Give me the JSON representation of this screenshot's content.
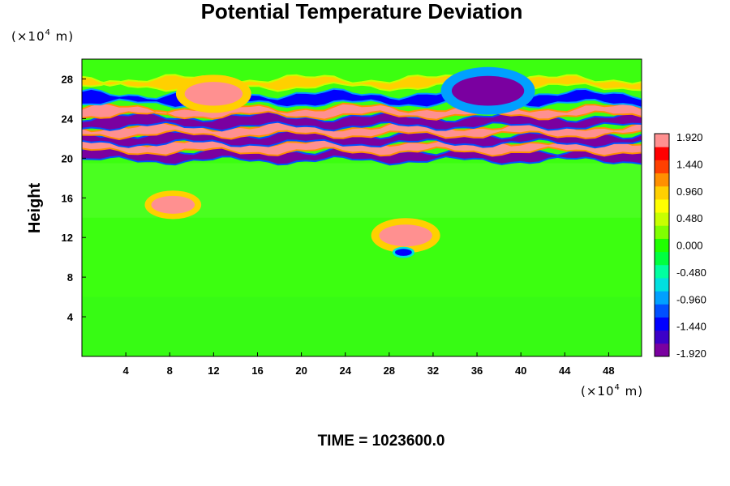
{
  "chart_data": {
    "type": "heatmap",
    "title": "Potential Temperature Deviation",
    "ylabel": "Height",
    "xlabel": "",
    "x_unit": "(×10",
    "x_unit_exp": "4",
    "x_unit_tail": " m)",
    "y_unit": "(×10",
    "y_unit_exp": "4",
    "y_unit_tail": " m)",
    "xlim": [
      0,
      51
    ],
    "ylim": [
      0,
      30
    ],
    "x_ticks": [
      "4",
      "8",
      "12",
      "16",
      "20",
      "24",
      "28",
      "32",
      "36",
      "40",
      "44",
      "48"
    ],
    "x_tick_values": [
      4,
      8,
      12,
      16,
      20,
      24,
      28,
      32,
      36,
      40,
      44,
      48
    ],
    "y_ticks": [
      "4",
      "8",
      "12",
      "16",
      "20",
      "24",
      "28"
    ],
    "y_tick_values": [
      4,
      8,
      12,
      16,
      20,
      24,
      28
    ],
    "colorbar": {
      "min": -1.92,
      "max": 1.92,
      "tick_labels": [
        "1.920",
        "1.440",
        "0.960",
        "0.480",
        "0.000",
        "-0.480",
        "-0.960",
        "-1.440",
        "-1.920"
      ],
      "tick_values": [
        1.92,
        1.44,
        0.96,
        0.48,
        0.0,
        -0.48,
        -0.96,
        -1.44,
        -1.92
      ],
      "colors": [
        "#7a00a0",
        "#3c00c8",
        "#0000ff",
        "#0050ff",
        "#00a0ff",
        "#00e0e0",
        "#00ffa0",
        "#00ff40",
        "#20ff00",
        "#80ff00",
        "#c8ff00",
        "#ffff00",
        "#ffd000",
        "#ff9000",
        "#ff4000",
        "#ff0000",
        "#ff9090"
      ]
    },
    "bands": [
      {
        "y": 20.3,
        "value": -1.92,
        "thickness": 0.9
      },
      {
        "y": 21.2,
        "value": 1.92,
        "thickness": 0.9
      },
      {
        "y": 22.0,
        "value": -1.92,
        "thickness": 0.8
      },
      {
        "y": 22.8,
        "value": 1.92,
        "thickness": 0.7
      },
      {
        "y": 23.7,
        "value": -1.92,
        "thickness": 0.8
      },
      {
        "y": 24.7,
        "value": 1.92,
        "thickness": 0.6
      },
      {
        "y": 26.0,
        "value": -1.44,
        "thickness": 0.8
      },
      {
        "y": 27.6,
        "value": 0.96,
        "thickness": 0.6
      }
    ],
    "blobs": [
      {
        "x": 8.3,
        "y": 15.3,
        "value": 1.92,
        "r": 0.9
      },
      {
        "x": 29.5,
        "y": 12.2,
        "value": 1.92,
        "r": 1.1
      },
      {
        "x": 29.3,
        "y": 10.5,
        "value": -1.44,
        "r": 0.35
      },
      {
        "x": 12.0,
        "y": 26.5,
        "value": 1.92,
        "r": 1.2
      },
      {
        "x": 37.0,
        "y": 26.8,
        "value": -1.92,
        "r": 1.5
      }
    ]
  },
  "footer": {
    "time_label": "TIME = 1023600.0"
  }
}
